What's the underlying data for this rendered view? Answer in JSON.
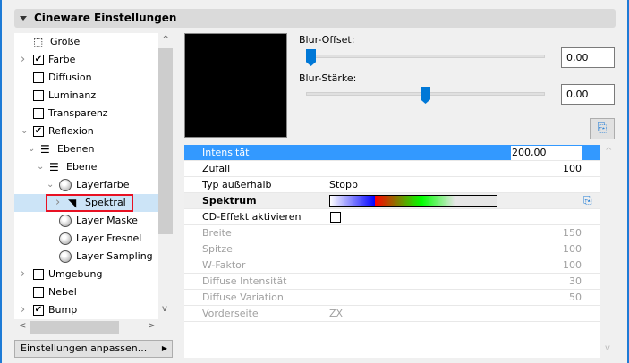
{
  "header": {
    "title": "Cineware Einstellungen"
  },
  "tree": {
    "items": [
      {
        "label": "Größe",
        "icon": "size-icon",
        "level": 0
      },
      {
        "label": "Farbe",
        "checked": true,
        "expander": "collapsed",
        "level": 0
      },
      {
        "label": "Diffusion",
        "checked": false,
        "level": 0
      },
      {
        "label": "Luminanz",
        "checked": false,
        "level": 0
      },
      {
        "label": "Transparenz",
        "checked": false,
        "level": 0
      },
      {
        "label": "Reflexion",
        "checked": true,
        "expander": "expanded",
        "level": 0
      },
      {
        "label": "Ebenen",
        "icon": "layers-icon",
        "expander": "expanded",
        "level": 1
      },
      {
        "label": "Ebene",
        "icon": "layers-icon",
        "expander": "expanded",
        "level": 2
      },
      {
        "label": "Layerfarbe",
        "icon": "sphere-icon",
        "expander": "expanded",
        "level": 3
      },
      {
        "label": "Spektral",
        "icon": "spectral-icon",
        "expander": "collapsed",
        "level": 4,
        "selected": true
      },
      {
        "label": "Layer Maske",
        "icon": "sphere-icon",
        "level": 3
      },
      {
        "label": "Layer Fresnel",
        "icon": "sphere-icon",
        "level": 3
      },
      {
        "label": "Layer Sampling",
        "icon": "sphere-icon",
        "level": 3
      },
      {
        "label": "Umgebung",
        "checked": false,
        "expander": "collapsed",
        "level": 0
      },
      {
        "label": "Nebel",
        "checked": false,
        "level": 0
      },
      {
        "label": "Bump",
        "checked": true,
        "expander": "collapsed",
        "level": 0
      }
    ]
  },
  "adjust_button": "Einstellungen anpassen...",
  "sliders": [
    {
      "label": "Blur-Offset:",
      "value": "0,00",
      "position_pct": 0
    },
    {
      "label": "Blur-Stärke:",
      "value": "0,00",
      "position_pct": 50
    }
  ],
  "colors": {
    "accent": "#0078d7",
    "selection": "#3399ff",
    "highlight_box": "#e81123"
  },
  "table": {
    "rows": [
      {
        "key": "Intensität",
        "right": "200,00",
        "state": "selected-editing"
      },
      {
        "key": "Zufall",
        "right": "100"
      },
      {
        "key": "Typ außerhalb",
        "value": "Stopp"
      },
      {
        "key": "Spektrum",
        "state": "group",
        "gradient": true
      },
      {
        "key": "CD-Effekt aktivieren",
        "checkbox": false
      },
      {
        "key": "Breite",
        "right": "150",
        "state": "disabled"
      },
      {
        "key": "Spitze",
        "right": "100",
        "state": "disabled"
      },
      {
        "key": "W-Faktor",
        "right": "100",
        "state": "disabled"
      },
      {
        "key": "Diffuse Intensität",
        "right": "30",
        "state": "disabled"
      },
      {
        "key": "Diffuse Variation",
        "right": "50",
        "state": "disabled"
      },
      {
        "key": "Vorderseite",
        "value": "ZX",
        "state": "disabled"
      }
    ]
  }
}
